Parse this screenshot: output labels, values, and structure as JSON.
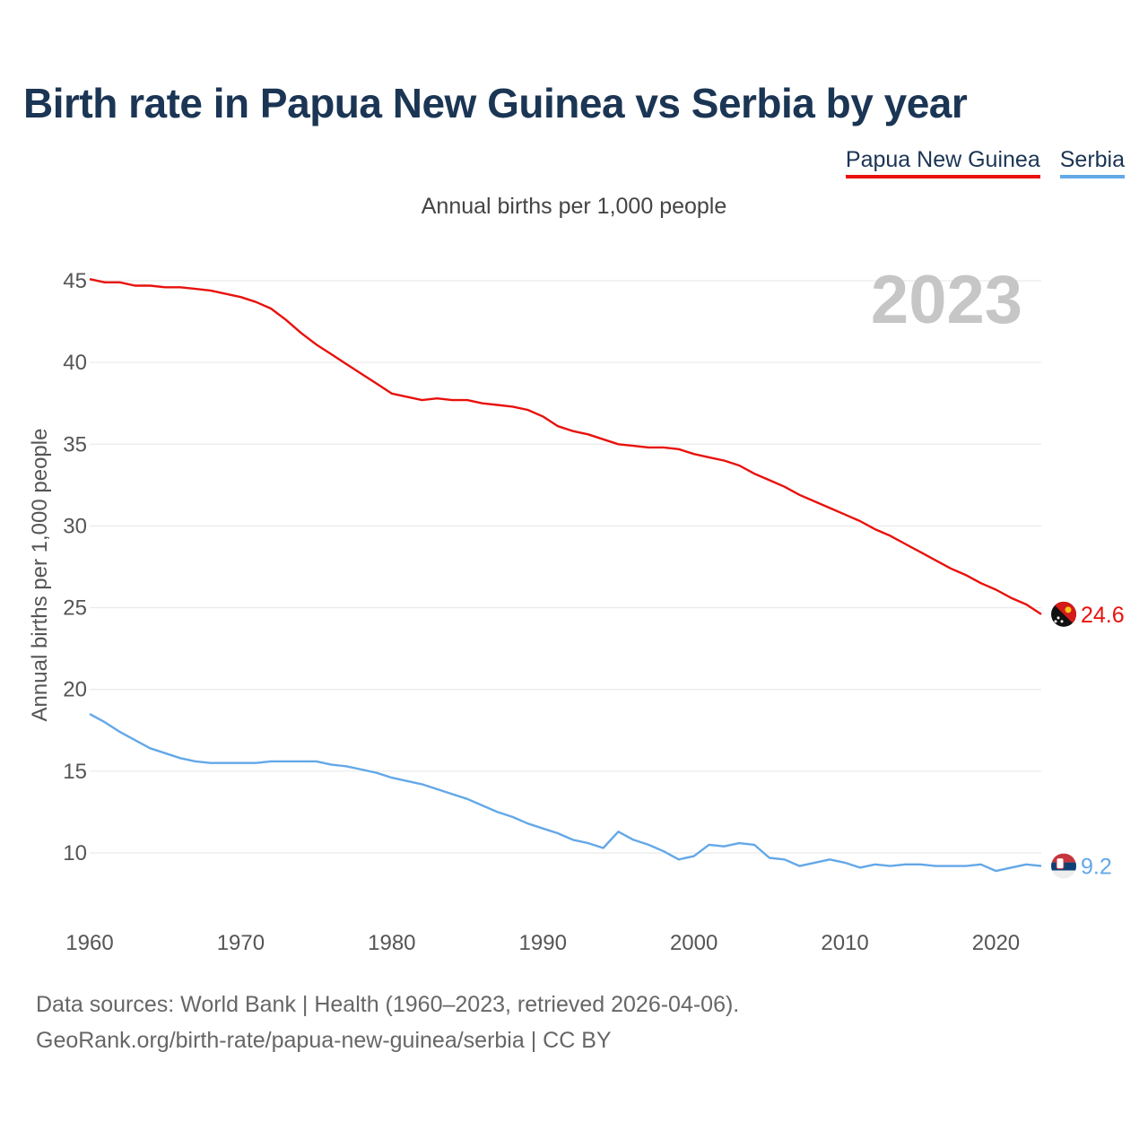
{
  "title": "Birth rate in Papua New Guinea vs Serbia by year",
  "legend": [
    {
      "name": "Papua New Guinea",
      "color": "#e8110c"
    },
    {
      "name": "Serbia",
      "color": "#63a8e8"
    }
  ],
  "subtitle": "Annual births per 1,000 people",
  "year_watermark": "2023",
  "footer": {
    "line1": "Data sources: World Bank | Health (1960–2023, retrieved 2026-04-06).",
    "line2": "GeoRank.org/birth-rate/papua-new-guinea/serbia | CC BY"
  },
  "chart_data": {
    "type": "line",
    "title": "Birth rate in Papua New Guinea vs Serbia by year",
    "ylabel": "Annual births per 1,000 people",
    "xlabel": "",
    "xlim": [
      1960,
      2023
    ],
    "ylim": [
      6,
      47
    ],
    "yticks": [
      10,
      15,
      20,
      25,
      30,
      35,
      40,
      45
    ],
    "xticks": [
      1960,
      1970,
      1980,
      1990,
      2000,
      2010,
      2020
    ],
    "grid": true,
    "x": [
      1960,
      1961,
      1962,
      1963,
      1964,
      1965,
      1966,
      1967,
      1968,
      1969,
      1970,
      1971,
      1972,
      1973,
      1974,
      1975,
      1976,
      1977,
      1978,
      1979,
      1980,
      1981,
      1982,
      1983,
      1984,
      1985,
      1986,
      1987,
      1988,
      1989,
      1990,
      1991,
      1992,
      1993,
      1994,
      1995,
      1996,
      1997,
      1998,
      1999,
      2000,
      2001,
      2002,
      2003,
      2004,
      2005,
      2006,
      2007,
      2008,
      2009,
      2010,
      2011,
      2012,
      2013,
      2014,
      2015,
      2016,
      2017,
      2018,
      2019,
      2020,
      2021,
      2022,
      2023
    ],
    "series": [
      {
        "name": "Papua New Guinea",
        "color": "#e8110c",
        "end_label": "24.6",
        "values": [
          45.1,
          44.9,
          44.9,
          44.7,
          44.7,
          44.6,
          44.6,
          44.5,
          44.4,
          44.2,
          44.0,
          43.7,
          43.3,
          42.6,
          41.8,
          41.1,
          40.5,
          39.9,
          39.3,
          38.7,
          38.1,
          37.9,
          37.7,
          37.8,
          37.7,
          37.7,
          37.5,
          37.4,
          37.3,
          37.1,
          36.7,
          36.1,
          35.8,
          35.6,
          35.3,
          35.0,
          34.9,
          34.8,
          34.8,
          34.7,
          34.4,
          34.2,
          34.0,
          33.7,
          33.2,
          32.8,
          32.4,
          31.9,
          31.5,
          31.1,
          30.7,
          30.3,
          29.8,
          29.4,
          28.9,
          28.4,
          27.9,
          27.4,
          27.0,
          26.5,
          26.1,
          25.6,
          25.2,
          24.6
        ]
      },
      {
        "name": "Serbia",
        "color": "#63a8e8",
        "end_label": "9.2",
        "values": [
          18.5,
          18.0,
          17.4,
          16.9,
          16.4,
          16.1,
          15.8,
          15.6,
          15.5,
          15.5,
          15.5,
          15.5,
          15.6,
          15.6,
          15.6,
          15.6,
          15.4,
          15.3,
          15.1,
          14.9,
          14.6,
          14.4,
          14.2,
          13.9,
          13.6,
          13.3,
          12.9,
          12.5,
          12.2,
          11.8,
          11.5,
          11.2,
          10.8,
          10.6,
          10.3,
          11.3,
          10.8,
          10.5,
          10.1,
          9.6,
          9.8,
          10.5,
          10.4,
          10.6,
          10.5,
          9.7,
          9.6,
          9.2,
          9.4,
          9.6,
          9.4,
          9.1,
          9.3,
          9.2,
          9.3,
          9.3,
          9.2,
          9.2,
          9.2,
          9.3,
          8.9,
          9.1,
          9.3,
          9.2
        ]
      }
    ]
  }
}
